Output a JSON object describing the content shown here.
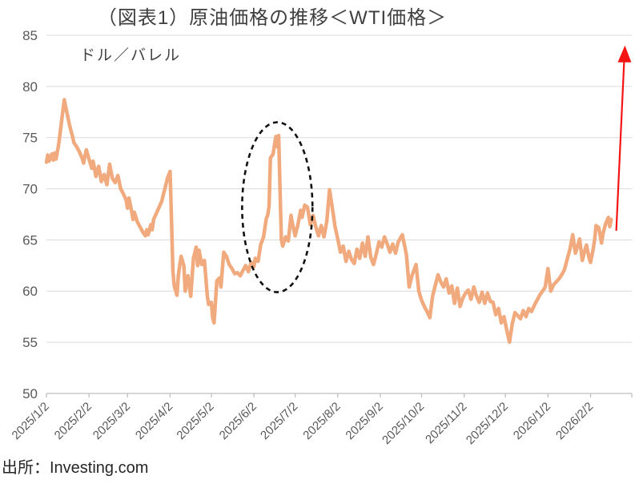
{
  "title": "（図表1）原油価格の推移＜WTI価格＞",
  "unit_label": "ドル／バレル",
  "source": "出所：Investing.com",
  "colors": {
    "line": "#F0AA7D",
    "gridline": "#D9D9D9",
    "axis": "#BFBFBF",
    "tick_label": "#595959",
    "title_text": "#3F3F3F",
    "arrow": "#F51414",
    "ellipse": "#111111",
    "background": "#FFFFFF"
  },
  "chart_data": {
    "type": "line",
    "title": "（図表1）原油価格の推移＜WTI価格＞",
    "xlabel": "",
    "ylabel": "ドル／バレル",
    "ylim": [
      50,
      85
    ],
    "yticks": [
      50,
      55,
      60,
      65,
      70,
      75,
      80,
      85
    ],
    "grid": "horizontal",
    "legend": "none",
    "xtick_labels": [
      "2025/1/2",
      "2025/2/2",
      "2025/3/2",
      "2025/4/2",
      "2025/5/2",
      "2025/6/2",
      "2025/7/2",
      "2025/8/2",
      "2025/9/2",
      "2025/10/2",
      "2025/11/2",
      "2025/12/2",
      "2026/1/2",
      "2026/2/2"
    ],
    "xtick_days": [
      0,
      31,
      59,
      90,
      120,
      151,
      181,
      212,
      243,
      273,
      304,
      334,
      365,
      396
    ],
    "x_axis_end_day": 426,
    "series": [
      {
        "name": "WTI価格",
        "unit": "ドル／バレル",
        "points": [
          [
            0,
            72.6
          ],
          [
            1,
            73.3
          ],
          [
            2,
            72.7
          ],
          [
            4,
            73.4
          ],
          [
            5,
            72.8
          ],
          [
            6,
            73.5
          ],
          [
            7,
            72.9
          ],
          [
            9,
            74.4
          ],
          [
            11,
            76.6
          ],
          [
            13,
            78.7
          ],
          [
            14,
            78.0
          ],
          [
            15,
            77.4
          ],
          [
            17,
            76.1
          ],
          [
            19,
            75.1
          ],
          [
            20,
            74.5
          ],
          [
            22,
            74.1
          ],
          [
            24,
            73.6
          ],
          [
            26,
            73.0
          ],
          [
            27,
            72.5
          ],
          [
            29,
            73.8
          ],
          [
            31,
            72.9
          ],
          [
            33,
            72.0
          ],
          [
            34,
            72.7
          ],
          [
            36,
            71.2
          ],
          [
            38,
            72.2
          ],
          [
            40,
            70.7
          ],
          [
            42,
            71.4
          ],
          [
            44,
            70.4
          ],
          [
            46,
            72.4
          ],
          [
            48,
            71.0
          ],
          [
            50,
            70.6
          ],
          [
            52,
            71.3
          ],
          [
            54,
            70.0
          ],
          [
            56,
            69.5
          ],
          [
            58,
            68.9
          ],
          [
            59,
            68.1
          ],
          [
            60,
            69.1
          ],
          [
            62,
            67.8
          ],
          [
            63,
            67.0
          ],
          [
            64,
            67.7
          ],
          [
            66,
            66.8
          ],
          [
            68,
            66.3
          ],
          [
            70,
            65.8
          ],
          [
            72,
            65.4
          ],
          [
            73,
            66.0
          ],
          [
            74,
            65.5
          ],
          [
            76,
            66.5
          ],
          [
            77,
            66.0
          ],
          [
            78,
            67.0
          ],
          [
            80,
            67.6
          ],
          [
            82,
            68.2
          ],
          [
            84,
            68.8
          ],
          [
            85,
            69.4
          ],
          [
            86,
            69.9
          ],
          [
            88,
            71.0
          ],
          [
            90,
            71.7
          ],
          [
            91,
            66.9
          ],
          [
            92,
            62.0
          ],
          [
            93,
            60.5
          ],
          [
            95,
            59.6
          ],
          [
            96,
            61.5
          ],
          [
            97,
            62.5
          ],
          [
            98,
            63.4
          ],
          [
            100,
            62.5
          ],
          [
            101,
            60.0
          ],
          [
            103,
            61.5
          ],
          [
            105,
            59.5
          ],
          [
            107,
            63.2
          ],
          [
            109,
            64.3
          ],
          [
            110,
            62.5
          ],
          [
            111,
            64.0
          ],
          [
            113,
            62.6
          ],
          [
            115,
            63.0
          ],
          [
            117,
            59.6
          ],
          [
            118,
            58.7
          ],
          [
            120,
            58.9
          ],
          [
            121,
            57.4
          ],
          [
            122,
            56.9
          ],
          [
            124,
            61.0
          ],
          [
            126,
            61.3
          ],
          [
            127,
            60.4
          ],
          [
            129,
            63.8
          ],
          [
            131,
            63.4
          ],
          [
            133,
            62.6
          ],
          [
            135,
            62.2
          ],
          [
            137,
            61.7
          ],
          [
            139,
            61.8
          ],
          [
            141,
            61.5
          ],
          [
            143,
            62.0
          ],
          [
            145,
            62.5
          ],
          [
            147,
            61.9
          ],
          [
            149,
            62.8
          ],
          [
            151,
            62.4
          ],
          [
            152,
            63.2
          ],
          [
            154,
            62.9
          ],
          [
            156,
            64.6
          ],
          [
            157,
            64.9
          ],
          [
            158,
            65.3
          ],
          [
            160,
            67.1
          ],
          [
            161,
            67.4
          ],
          [
            162,
            68.3
          ],
          [
            163,
            73.0
          ],
          [
            165,
            73.4
          ],
          [
            166,
            74.3
          ],
          [
            167,
            75.1
          ],
          [
            168,
            74.1
          ],
          [
            169,
            75.2
          ],
          [
            170,
            70.0
          ],
          [
            171,
            65.0
          ],
          [
            172,
            64.4
          ],
          [
            174,
            65.3
          ],
          [
            176,
            64.9
          ],
          [
            177,
            66.1
          ],
          [
            178,
            67.4
          ],
          [
            179,
            66.6
          ],
          [
            181,
            65.4
          ],
          [
            183,
            66.5
          ],
          [
            185,
            67.9
          ],
          [
            186,
            67.2
          ],
          [
            188,
            68.4
          ],
          [
            190,
            68.2
          ],
          [
            192,
            66.5
          ],
          [
            194,
            67.4
          ],
          [
            196,
            66.3
          ],
          [
            198,
            65.4
          ],
          [
            200,
            66.4
          ],
          [
            202,
            65.3
          ],
          [
            204,
            66.8
          ],
          [
            206,
            69.9
          ],
          [
            208,
            68.2
          ],
          [
            210,
            66.3
          ],
          [
            212,
            65.1
          ],
          [
            214,
            63.8
          ],
          [
            216,
            64.4
          ],
          [
            218,
            62.9
          ],
          [
            220,
            63.9
          ],
          [
            222,
            63.1
          ],
          [
            224,
            62.7
          ],
          [
            226,
            64.1
          ],
          [
            228,
            63.2
          ],
          [
            230,
            64.7
          ],
          [
            232,
            63.4
          ],
          [
            234,
            65.3
          ],
          [
            236,
            63.3
          ],
          [
            238,
            62.6
          ],
          [
            240,
            63.6
          ],
          [
            242,
            64.8
          ],
          [
            244,
            64.3
          ],
          [
            246,
            65.3
          ],
          [
            248,
            64.6
          ],
          [
            250,
            63.8
          ],
          [
            252,
            64.6
          ],
          [
            254,
            63.7
          ],
          [
            256,
            64.8
          ],
          [
            259,
            65.5
          ],
          [
            261,
            64.2
          ],
          [
            262,
            63.5
          ],
          [
            264,
            60.4
          ],
          [
            266,
            61.5
          ],
          [
            269,
            62.6
          ],
          [
            271,
            60.0
          ],
          [
            273,
            59.1
          ],
          [
            275,
            58.5
          ],
          [
            277,
            58.0
          ],
          [
            279,
            57.4
          ],
          [
            281,
            59.5
          ],
          [
            285,
            61.6
          ],
          [
            287,
            60.9
          ],
          [
            289,
            60.4
          ],
          [
            291,
            61.2
          ],
          [
            293,
            59.8
          ],
          [
            295,
            60.5
          ],
          [
            297,
            58.8
          ],
          [
            299,
            60.3
          ],
          [
            301,
            58.5
          ],
          [
            303,
            59.3
          ],
          [
            305,
            59.8
          ],
          [
            307,
            60.1
          ],
          [
            309,
            59.2
          ],
          [
            311,
            60.4
          ],
          [
            313,
            59.5
          ],
          [
            315,
            58.9
          ],
          [
            317,
            59.9
          ],
          [
            319,
            58.8
          ],
          [
            321,
            59.8
          ],
          [
            323,
            59.0
          ],
          [
            325,
            58.9
          ],
          [
            327,
            57.7
          ],
          [
            329,
            58.3
          ],
          [
            331,
            56.9
          ],
          [
            333,
            57.5
          ],
          [
            335,
            56.2
          ],
          [
            337,
            55.0
          ],
          [
            339,
            56.8
          ],
          [
            341,
            57.9
          ],
          [
            343,
            57.6
          ],
          [
            345,
            57.3
          ],
          [
            347,
            58.1
          ],
          [
            349,
            57.5
          ],
          [
            351,
            58.3
          ],
          [
            353,
            58.0
          ],
          [
            355,
            58.6
          ],
          [
            357,
            59.1
          ],
          [
            359,
            59.6
          ],
          [
            361,
            60.0
          ],
          [
            363,
            60.4
          ],
          [
            365,
            62.2
          ],
          [
            367,
            60.0
          ],
          [
            369,
            60.6
          ],
          [
            371,
            60.9
          ],
          [
            373,
            61.2
          ],
          [
            375,
            61.6
          ],
          [
            377,
            62.1
          ],
          [
            379,
            63.1
          ],
          [
            381,
            64.1
          ],
          [
            383,
            65.5
          ],
          [
            385,
            63.7
          ],
          [
            387,
            64.6
          ],
          [
            388,
            65.1
          ],
          [
            390,
            63.0
          ],
          [
            392,
            64.1
          ],
          [
            393,
            64.5
          ],
          [
            395,
            63.2
          ],
          [
            396,
            62.8
          ],
          [
            398,
            64.2
          ],
          [
            399,
            65.1
          ],
          [
            400,
            66.4
          ],
          [
            402,
            66.2
          ],
          [
            404,
            64.7
          ],
          [
            405,
            65.6
          ],
          [
            407,
            66.6
          ],
          [
            409,
            67.2
          ],
          [
            410,
            66.3
          ],
          [
            411,
            67.0
          ]
        ]
      }
    ],
    "annotations": {
      "ellipse": {
        "description": "dashed ellipse highlighting the June 2025 price spike",
        "center_day": 168,
        "center_value": 68.2,
        "radius_days": 25.6,
        "radius_value": 8.3
      },
      "arrow": {
        "description": "red upward arrow at right edge suggesting rising price",
        "from_day": 414.7,
        "from_value": 65.9,
        "tip_day": 421,
        "tip_value": 84.0
      }
    }
  }
}
